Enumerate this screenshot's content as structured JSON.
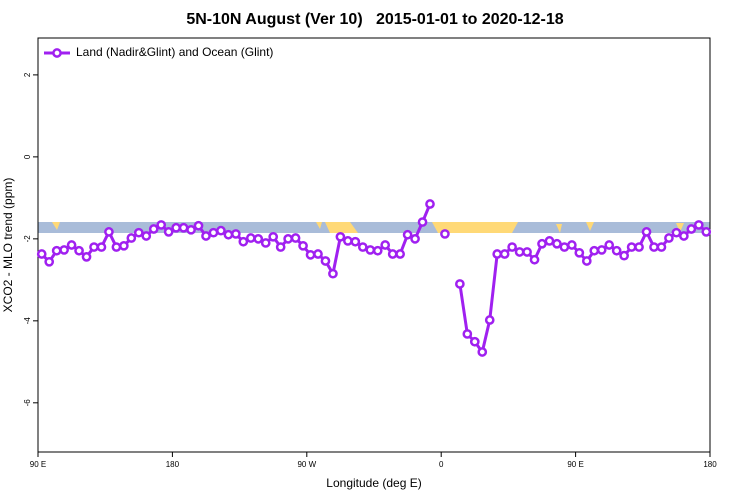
{
  "chart_data": {
    "type": "line",
    "title": "5N-10N August (Ver 10)   2015-01-01 to 2020-12-18",
    "xlabel": "Longitude (deg E)",
    "ylabel": "XCO2 - MLO trend (ppm)",
    "xlim": [
      90,
      540
    ],
    "ylim": [
      -7.2,
      2.9
    ],
    "xticks": [
      {
        "value": 90,
        "label": "90 E"
      },
      180,
      {
        "value": 270,
        "label": "90 W"
      },
      {
        "value": 360,
        "label": "0"
      },
      {
        "value": 450,
        "label": "90 E"
      },
      {
        "value": 540,
        "label": "180"
      }
    ],
    "yticks": [
      2,
      0,
      -2,
      -4,
      -6
    ],
    "legend": "top-left",
    "x": [
      92.5,
      97.5,
      102.5,
      107.5,
      112.5,
      117.5,
      122.5,
      127.5,
      132.5,
      137.5,
      142.5,
      147.5,
      152.5,
      157.5,
      162.5,
      167.5,
      172.5,
      177.5,
      182.5,
      187.5,
      192.5,
      197.5,
      202.5,
      207.5,
      212.5,
      217.5,
      222.5,
      227.5,
      232.5,
      237.5,
      242.5,
      247.5,
      252.5,
      257.5,
      262.5,
      267.5,
      272.5,
      277.5,
      282.5,
      287.5,
      292.5,
      297.5,
      302.5,
      307.5,
      312.5,
      317.5,
      322.5,
      327.5,
      332.5,
      337.5,
      342.5,
      347.5,
      352.5,
      357.5,
      362.5,
      367.5,
      372.5,
      377.5,
      382.5,
      387.5,
      392.5,
      397.5,
      402.5,
      407.5,
      412.5,
      417.5,
      422.5,
      427.5,
      432.5,
      437.5,
      442.5,
      447.5,
      452.5,
      457.5,
      462.5,
      467.5,
      472.5,
      477.5,
      482.5,
      487.5,
      492.5,
      497.5,
      502.5,
      507.5,
      512.5,
      517.5,
      522.5,
      527.5,
      532.5,
      537.5
    ],
    "series": [
      {
        "name": "Land (Nadir&Glint) and Ocean (Glint)",
        "color": "#a020f0",
        "values": [
          -2.37,
          -2.56,
          -2.29,
          -2.27,
          -2.15,
          -2.29,
          -2.44,
          -2.2,
          -2.2,
          -1.83,
          -2.2,
          -2.17,
          -1.98,
          -1.85,
          -1.93,
          -1.76,
          -1.66,
          -1.83,
          -1.73,
          -1.73,
          -1.78,
          -1.68,
          -1.93,
          -1.85,
          -1.8,
          -1.9,
          -1.88,
          -2.07,
          -1.98,
          -2.0,
          -2.1,
          -1.95,
          -2.2,
          -2.0,
          -1.98,
          -2.17,
          -2.39,
          -2.37,
          -2.54,
          -2.85,
          -1.95,
          -2.05,
          -2.07,
          -2.2,
          -2.27,
          -2.29,
          -2.15,
          -2.37,
          -2.37,
          -1.9,
          -2.0,
          -1.59,
          -1.15,
          null,
          -1.88,
          null,
          -3.1,
          -4.32,
          -4.51,
          -4.76,
          -3.98,
          -2.37,
          -2.37,
          -2.2,
          -2.32,
          -2.32,
          -2.51,
          -2.12,
          -2.05,
          -2.12,
          -2.2,
          -2.15,
          -2.34,
          -2.54,
          -2.29,
          -2.27,
          -2.15,
          -2.29,
          -2.41,
          -2.2,
          -2.2,
          -1.83,
          -2.2,
          -2.2,
          -1.98,
          -1.85,
          -1.93,
          -1.76,
          -1.66,
          -1.83
        ]
      }
    ]
  }
}
